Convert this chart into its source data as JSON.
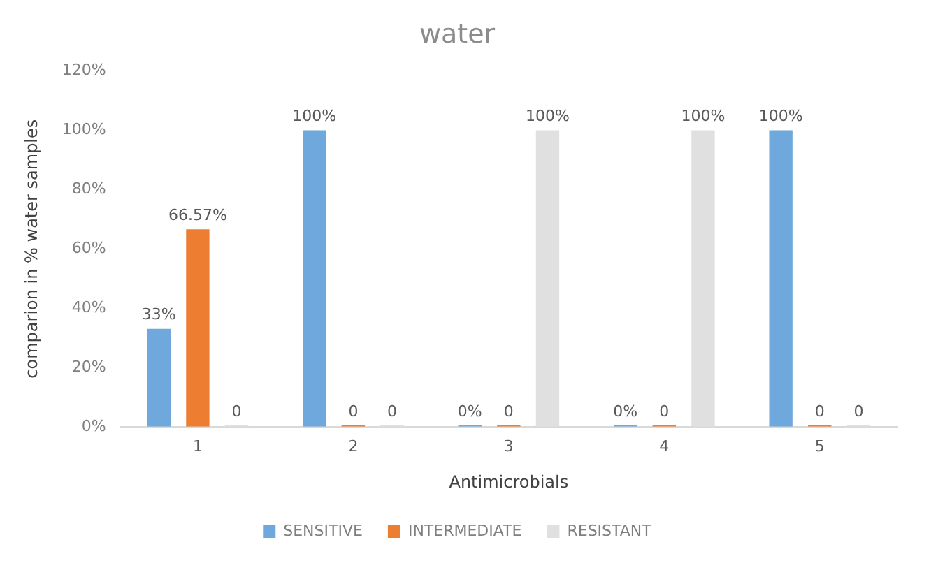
{
  "chart_data": {
    "type": "bar",
    "title": "water",
    "xlabel": "Antimicrobials",
    "ylabel": "comparion in % water samples",
    "categories": [
      "1",
      "2",
      "3",
      "4",
      "5"
    ],
    "series": [
      {
        "name": "SENSITIVE",
        "color": "#6fa8dc",
        "values": [
          33,
          100,
          0,
          0,
          100
        ],
        "value_labels": [
          "33%",
          "100%",
          "0%",
          "0%",
          "100%"
        ]
      },
      {
        "name": "INTERMEDIATE",
        "color": "#ed7d31",
        "values": [
          66.57,
          0,
          0,
          0,
          0
        ],
        "value_labels": [
          "66.57%",
          "0",
          "0",
          "0",
          "0"
        ]
      },
      {
        "name": "RESISTANT",
        "color": "#e0e0e0",
        "values": [
          0,
          0,
          100,
          100,
          0
        ],
        "value_labels": [
          "0",
          "0",
          "100%",
          "100%",
          "0"
        ]
      }
    ],
    "ylim": [
      0,
      120
    ],
    "yticks": [
      {
        "value": 0,
        "label": "0%"
      },
      {
        "value": 20,
        "label": "20%"
      },
      {
        "value": 40,
        "label": "40%"
      },
      {
        "value": 60,
        "label": "60%"
      },
      {
        "value": 80,
        "label": "80%"
      },
      {
        "value": 100,
        "label": "100%"
      },
      {
        "value": 120,
        "label": "120%"
      }
    ],
    "grid": false,
    "legend": "bottom"
  }
}
